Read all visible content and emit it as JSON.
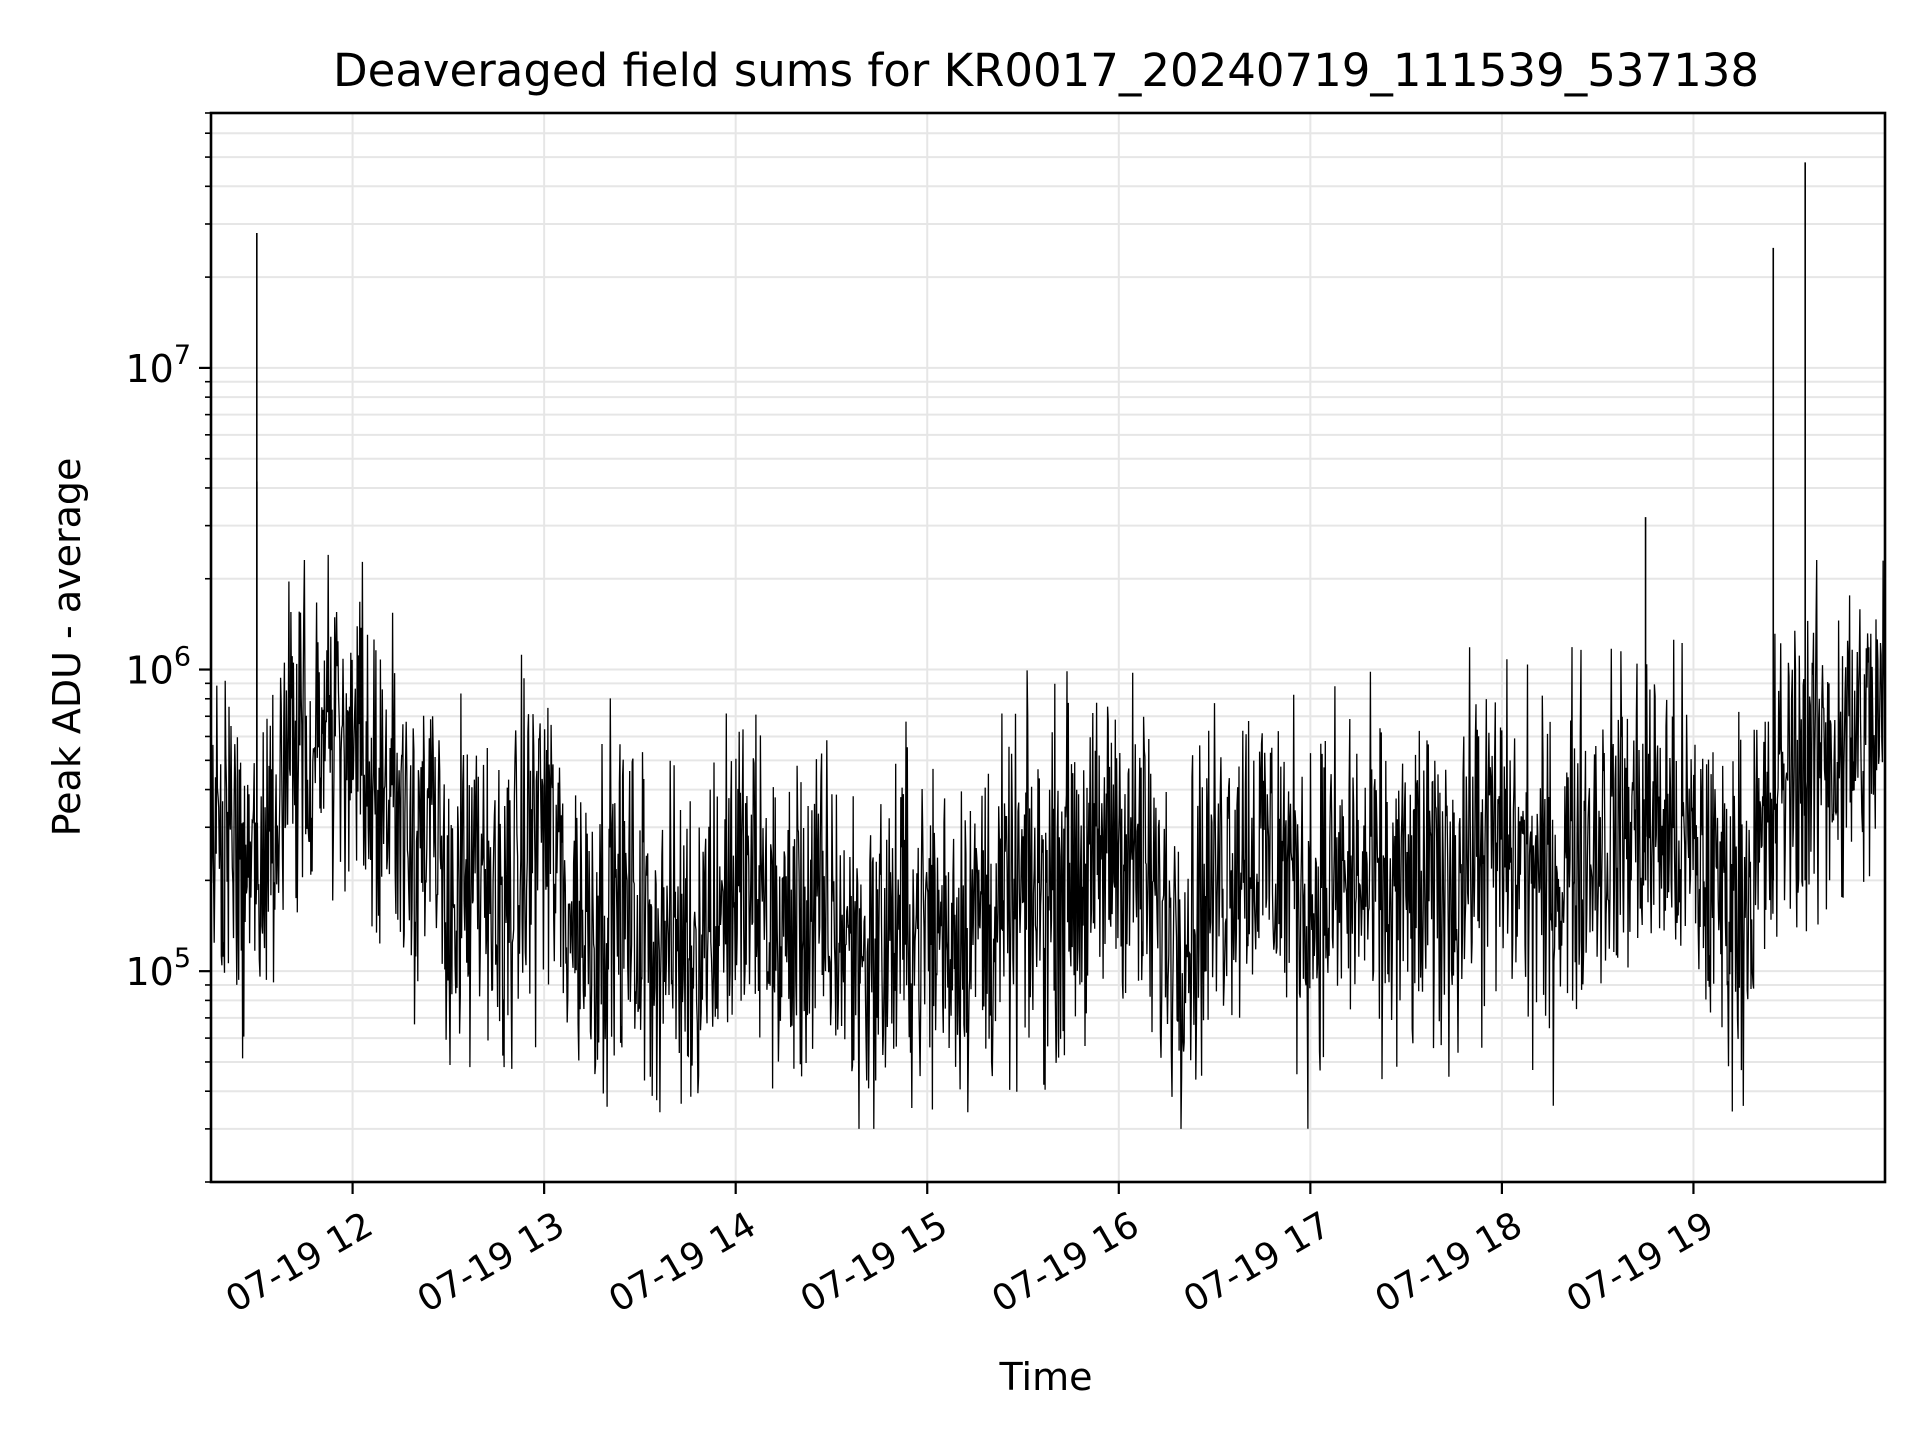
{
  "chart_data": {
    "type": "line",
    "title": "Deaveraged field sums for KR0017_20240719_111539_537138",
    "xlabel": "Time",
    "ylabel": "Peak ADU - average",
    "x_scale": "time",
    "y_scale": "log",
    "xlim": [
      "2024-07-19 11:15:39",
      "2024-07-19 20:00:00"
    ],
    "ylim": [
      20000,
      70000000
    ],
    "x_ticks": [
      "2024-07-19 12:00",
      "2024-07-19 13:00",
      "2024-07-19 14:00",
      "2024-07-19 15:00",
      "2024-07-19 16:00",
      "2024-07-19 17:00",
      "2024-07-19 18:00",
      "2024-07-19 19:00"
    ],
    "x_tick_labels": [
      "07-19 12",
      "07-19 13",
      "07-19 14",
      "07-19 15",
      "07-19 16",
      "07-19 17",
      "07-19 18",
      "07-19 19"
    ],
    "y_ticks": [
      100000,
      1000000,
      10000000
    ],
    "y_tick_labels": [
      {
        "base": "10",
        "exp": "5"
      },
      {
        "base": "10",
        "exp": "6"
      },
      {
        "base": "10",
        "exp": "7"
      }
    ],
    "grid": true,
    "line_color": "#000000",
    "grid_color": "#e6e6e6",
    "series": [
      {
        "x": [
          "2024-07-19 11:15",
          "2024-07-19 11:22",
          "2024-07-19 11:29",
          "2024-07-19 11:37",
          "2024-07-19 11:44",
          "2024-07-19 11:52",
          "2024-07-19 11:59",
          "2024-07-19 12:07",
          "2024-07-19 12:14",
          "2024-07-19 12:22",
          "2024-07-19 12:29",
          "2024-07-19 12:37",
          "2024-07-19 12:44",
          "2024-07-19 12:52",
          "2024-07-19 12:59",
          "2024-07-19 13:07",
          "2024-07-19 13:14",
          "2024-07-19 13:22",
          "2024-07-19 13:29",
          "2024-07-19 13:37",
          "2024-07-19 13:44",
          "2024-07-19 13:52",
          "2024-07-19 13:59",
          "2024-07-19 14:07",
          "2024-07-19 14:14",
          "2024-07-19 14:22",
          "2024-07-19 14:29",
          "2024-07-19 14:37",
          "2024-07-19 14:44",
          "2024-07-19 14:52",
          "2024-07-19 14:59",
          "2024-07-19 15:07",
          "2024-07-19 15:14",
          "2024-07-19 15:22",
          "2024-07-19 15:29",
          "2024-07-19 15:37",
          "2024-07-19 15:44",
          "2024-07-19 15:52",
          "2024-07-19 15:59",
          "2024-07-19 16:07",
          "2024-07-19 16:14",
          "2024-07-19 16:22",
          "2024-07-19 16:29",
          "2024-07-19 16:37",
          "2024-07-19 16:44",
          "2024-07-19 16:52",
          "2024-07-19 16:59",
          "2024-07-19 17:07",
          "2024-07-19 17:14",
          "2024-07-19 17:22",
          "2024-07-19 17:29",
          "2024-07-19 17:37",
          "2024-07-19 17:44",
          "2024-07-19 17:52",
          "2024-07-19 17:59",
          "2024-07-19 18:07",
          "2024-07-19 18:14",
          "2024-07-19 18:22",
          "2024-07-19 18:29",
          "2024-07-19 18:37",
          "2024-07-19 18:44",
          "2024-07-19 18:52",
          "2024-07-19 18:59",
          "2024-07-19 19:07",
          "2024-07-19 19:14",
          "2024-07-19 19:22",
          "2024-07-19 19:29",
          "2024-07-19 19:37",
          "2024-07-19 19:44",
          "2024-07-19 19:52",
          "2024-07-19 19:59"
        ],
        "y": [
          250000,
          260000,
          180000,
          400000,
          600000,
          700000,
          500000,
          450000,
          400000,
          300000,
          180000,
          180000,
          160000,
          200000,
          350000,
          170000,
          140000,
          180000,
          140000,
          130000,
          120000,
          150000,
          200000,
          180000,
          130000,
          150000,
          150000,
          120000,
          110000,
          150000,
          140000,
          140000,
          150000,
          150000,
          170000,
          180000,
          230000,
          200000,
          300000,
          220000,
          140000,
          150000,
          190000,
          270000,
          250000,
          230000,
          170000,
          190000,
          200000,
          170000,
          180000,
          180000,
          200000,
          270000,
          260000,
          230000,
          180000,
          250000,
          280000,
          300000,
          330000,
          300000,
          250000,
          190000,
          170000,
          250000,
          450000,
          500000,
          550000,
          600000,
          650000
        ],
        "spikes": [
          {
            "x": "2024-07-19 11:30",
            "y": 28000000
          },
          {
            "x": "2024-07-19 11:30",
            "y": 4200000
          },
          {
            "x": "2024-07-19 18:45",
            "y": 3200000
          },
          {
            "x": "2024-07-19 19:25",
            "y": 25000000
          },
          {
            "x": "2024-07-19 19:35",
            "y": 48000000
          }
        ]
      }
    ]
  }
}
